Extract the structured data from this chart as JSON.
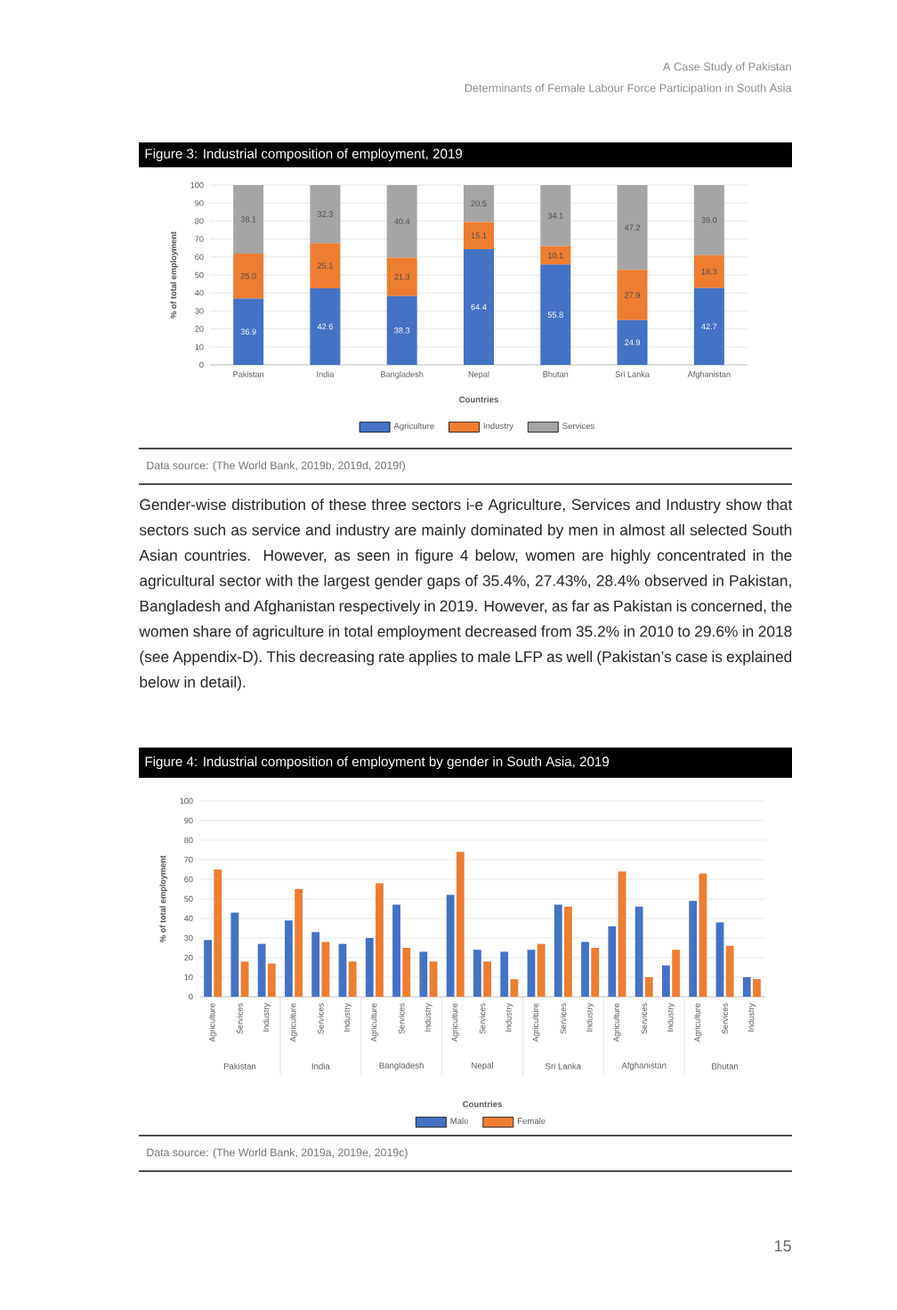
{
  "chart_data": [
    {
      "type": "bar",
      "stacked": true,
      "title": "Figure 3: Industrial composition of employment, 2019",
      "xlabel": "Countries",
      "ylabel": "% of total employment",
      "categories": [
        "Pakistan",
        "India",
        "Bangladesh",
        "Nepal",
        "Bhutan",
        "Sri Lanka",
        "Afghanistan"
      ],
      "series": [
        {
          "name": "Agriculture",
          "color": "#4472c4",
          "values": [
            36.9,
            42.6,
            38.3,
            64.4,
            55.8,
            24.9,
            42.7
          ],
          "value_labels": [
            "36.9",
            "42.6",
            "38.3",
            "64.4",
            "55.8",
            "24.9",
            "42.7"
          ]
        },
        {
          "name": "Industry",
          "color": "#ed7d31",
          "values": [
            25.0,
            25.1,
            21.3,
            15.1,
            10.1,
            27.9,
            18.3
          ],
          "value_labels": [
            "25.0",
            "25.1",
            "21.3",
            "15.1",
            "10.1",
            "27.9",
            "18.3"
          ]
        },
        {
          "name": "Services",
          "color": "#a5a5a5",
          "values": [
            38.1,
            32.3,
            40.4,
            20.5,
            34.1,
            47.2,
            39.0
          ],
          "value_labels": [
            "38.1",
            "32.3",
            "40.4",
            "20.5",
            "34.1",
            "47.2",
            "39.0"
          ]
        }
      ],
      "ylim": [
        0,
        100
      ],
      "yticks": [
        0,
        10,
        20,
        30,
        40,
        50,
        60,
        70,
        80,
        90,
        100
      ],
      "grid": "y",
      "legend": "bottom",
      "annotations": [
        "A Case Study of Pakistan",
        "Determinants of Female Labour Force Participation in South Asia",
        "Data source: (The World Bank, 2019b, 2019d, 2019f)",
        "Gender-wise distribution of these three sectors i-e Agriculture, Services and Industry show that sectors such as service and industry are mainly dominated by men in almost all selected South Asian countries. However, as seen in figure 4 below, women are highly concentrated in the agricultural sector with the largest gender gaps of 35.4%, 27.43%, 28.4% observed in Pakistan, Bangladesh and Afghanistan respectively in 2019. However, as far as Pakistan is concerned, the women share of agriculture in total employment decreased from 35.2% in 2010 to 29.6% in 2018 (see Appendix-D). This decreasing rate applies to male LFP as well (Pakistan’s case is explained below in detail)."
      ]
    },
    {
      "type": "bar",
      "title": "Figure 4: Industrial composition of employment by gender in South Asia, 2019",
      "xlabel": "Countries",
      "ylabel": "% of total employment",
      "categories": [
        "Agriculture",
        "Services",
        "Industry",
        "Agriculture",
        "Services",
        "Industry",
        "Agriculture",
        "Services",
        "Industry",
        "Agriculture",
        "Services",
        "Industry",
        "Agriculture",
        "Services",
        "Industry",
        "Agriculture",
        "Services",
        "Industry",
        "Agriculture",
        "Services",
        "Industry"
      ],
      "series": [
        {
          "name": "Male",
          "color": "#4472c4",
          "values": [
            29,
            43,
            27,
            39,
            33,
            27,
            30,
            47,
            23,
            52,
            24,
            23,
            24,
            47,
            28,
            36,
            46,
            16,
            49,
            38,
            10
          ]
        },
        {
          "name": "Female",
          "color": "#ed7d31",
          "values": [
            65,
            18,
            17,
            55,
            28,
            18,
            58,
            25,
            18,
            74,
            18,
            9,
            27,
            46,
            25,
            64,
            10,
            24,
            63,
            26,
            9
          ]
        }
      ],
      "ylim": [
        0,
        100
      ],
      "yticks": [
        0,
        10,
        20,
        30,
        40,
        50,
        60,
        70,
        80,
        90,
        100
      ],
      "grid": "y",
      "legend": "bottom",
      "annotations": [
        "Pakistan",
        "India",
        "Bangladesh",
        "Nepal",
        "Sri Lanka",
        "Afghanistan",
        "Bhutan",
        "Data source: (The World Bank, 2019a, 2019e, 2019c)",
        "15"
      ]
    }
  ]
}
